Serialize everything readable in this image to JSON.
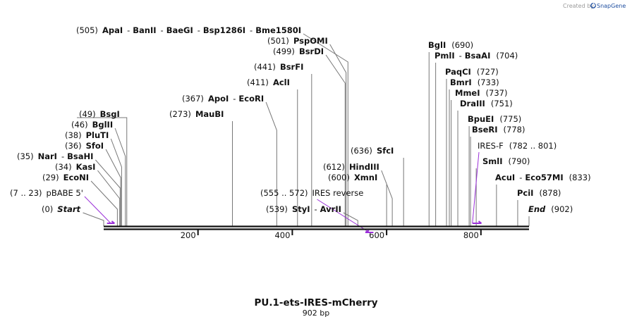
{
  "credit": {
    "text": "Created by",
    "logo": "SnapGene"
  },
  "title": "PU.1-ets-IRES-mCherry",
  "length_label": "902 bp",
  "colors": {
    "backbone": "#111111",
    "primer": "#9b30d9",
    "leader": "#777777"
  },
  "axis": {
    "min": 0,
    "max": 902,
    "ticks": [
      {
        "pos": 200,
        "label": "200"
      },
      {
        "pos": 400,
        "label": "400"
      },
      {
        "pos": 600,
        "label": "600"
      },
      {
        "pos": 800,
        "label": "800"
      }
    ]
  },
  "labels": [
    {
      "pos": 518,
      "loc": "(505)",
      "names": [
        "ApaI",
        "BanII",
        "BaeGI",
        "Bsp1286I",
        "Bme1580I"
      ]
    },
    {
      "pos": 514,
      "loc": "(501)",
      "names": [
        "PspOMI"
      ]
    },
    {
      "pos": 512,
      "loc": "(499)",
      "names": [
        "BsrDI"
      ]
    },
    {
      "pos": 441,
      "loc": "(441)",
      "names": [
        "BsrFI"
      ]
    },
    {
      "pos": 411,
      "loc": "(411)",
      "names": [
        "AclI"
      ]
    },
    {
      "pos": 367,
      "loc": "(367)",
      "names": [
        "ApoI",
        "EcoRI"
      ]
    },
    {
      "pos": 273,
      "loc": "(273)",
      "names": [
        "MauBI"
      ]
    },
    {
      "pos": 49,
      "loc": "(49)",
      "names": [
        "BsgI"
      ]
    },
    {
      "pos": 46,
      "loc": "(46)",
      "names": [
        "BglII"
      ]
    },
    {
      "pos": 38,
      "loc": "(38)",
      "names": [
        "PluTI"
      ]
    },
    {
      "pos": 36,
      "loc": "(36)",
      "names": [
        "SfoI"
      ]
    },
    {
      "pos": 35,
      "loc": "(35)",
      "names": [
        "NarI",
        "BsaHI"
      ]
    },
    {
      "pos": 34,
      "loc": "(34)",
      "names": [
        "KasI"
      ]
    },
    {
      "pos": 29,
      "loc": "(29)",
      "names": [
        "EcoNI"
      ]
    },
    {
      "pos": 0,
      "loc": "(0)",
      "names": [
        "Start"
      ],
      "italic": true
    },
    {
      "pos": 539,
      "loc": "(539)",
      "names": [
        "StyI",
        "AvrII"
      ]
    },
    {
      "pos": 600,
      "loc": "(600)",
      "names": [
        "XmnI"
      ]
    },
    {
      "pos": 612,
      "loc": "(612)",
      "names": [
        "HindIII"
      ]
    },
    {
      "pos": 636,
      "loc": "(636)",
      "names": [
        "SfcI"
      ]
    },
    {
      "pos": 690,
      "loc": "(690)",
      "names": [
        "BglI"
      ]
    },
    {
      "pos": 704,
      "loc": "(704)",
      "names": [
        "PmlI",
        "BsaAI"
      ]
    },
    {
      "pos": 727,
      "loc": "(727)",
      "names": [
        "PaqCI"
      ]
    },
    {
      "pos": 733,
      "loc": "(733)",
      "names": [
        "BmrI"
      ]
    },
    {
      "pos": 737,
      "loc": "(737)",
      "names": [
        "MmeI"
      ]
    },
    {
      "pos": 751,
      "loc": "(751)",
      "names": [
        "DraIII"
      ]
    },
    {
      "pos": 775,
      "loc": "(775)",
      "names": [
        "BpuEI"
      ]
    },
    {
      "pos": 778,
      "loc": "(778)",
      "names": [
        "BseRI"
      ]
    },
    {
      "pos": 790,
      "loc": "(790)",
      "names": [
        "SmlI"
      ]
    },
    {
      "pos": 833,
      "loc": "(833)",
      "names": [
        "AcuI",
        "Eco57MI"
      ]
    },
    {
      "pos": 878,
      "loc": "(878)",
      "names": [
        "PciI"
      ]
    },
    {
      "pos": 902,
      "loc": "(902)",
      "names": [
        "End"
      ],
      "italic": true
    }
  ],
  "primers": [
    {
      "name": "pBABE 5'",
      "range": "(7 .. 23)",
      "start": 7,
      "end": 23,
      "direction": "forward"
    },
    {
      "name": "IRES reverse",
      "range": "(555 .. 572)",
      "start": 555,
      "end": 572,
      "direction": "reverse"
    },
    {
      "name": "IRES-F",
      "range": "(782 .. 801)",
      "start": 782,
      "end": 801,
      "direction": "forward"
    }
  ]
}
